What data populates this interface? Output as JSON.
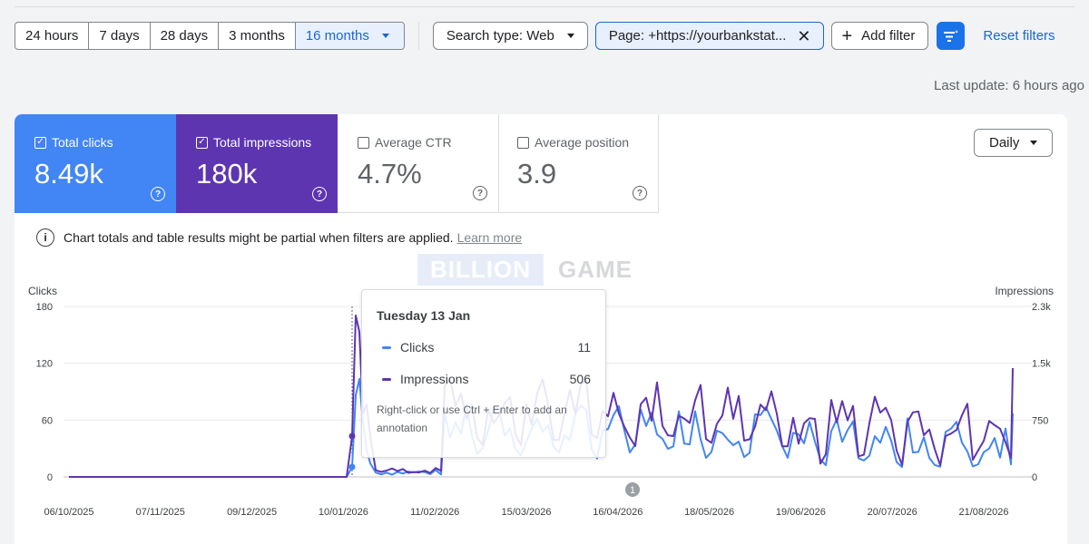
{
  "filters": {
    "date_ranges": [
      "24 hours",
      "7 days",
      "28 days",
      "3 months",
      "16 months"
    ],
    "active_range": "16 months",
    "search_type": "Search type: Web",
    "page_filter": "Page: +https://yourbankstat...",
    "add_filter": "Add filter",
    "reset": "Reset filters"
  },
  "last_update": "Last update: 6 hours ago",
  "metrics": {
    "clicks": {
      "label": "Total clicks",
      "value": "8.49k",
      "checked": true,
      "color": "#4285f4"
    },
    "impressions": {
      "label": "Total impressions",
      "value": "180k",
      "checked": true,
      "color": "#5e35b1"
    },
    "ctr": {
      "label": "Average CTR",
      "value": "4.7%",
      "checked": false
    },
    "position": {
      "label": "Average position",
      "value": "3.9",
      "checked": false
    }
  },
  "granularity": "Daily",
  "notice": {
    "text": "Chart totals and table results might be partial when filters are applied.",
    "link": "Learn more"
  },
  "watermark": {
    "a": "BILLION",
    "b": "GAME"
  },
  "tooltip": {
    "date": "Tuesday 13 Jan",
    "clicks_label": "Clicks",
    "clicks_value": "11",
    "impressions_label": "Impressions",
    "impressions_value": "506",
    "hint": "Right-click or use Ctrl + Enter to add an annotation"
  },
  "annotation_marker": "1",
  "chart_data": {
    "type": "line",
    "x": [
      "06/10/2025",
      "07/11/2025",
      "09/12/2025",
      "10/01/2026",
      "11/02/2026",
      "15/03/2026",
      "16/04/2026",
      "18/05/2026",
      "19/06/2026",
      "20/07/2026",
      "21/08/2026"
    ],
    "y_left_label": "Clicks",
    "y_left_ticks": [
      "0",
      "60",
      "120",
      "180"
    ],
    "y_left_range": [
      0,
      180
    ],
    "y_right_label": "Impressions",
    "y_right_ticks": [
      "0",
      "750",
      "1.5k",
      "2.3k"
    ],
    "y_right_range": [
      0,
      2250
    ],
    "grid": true,
    "series": [
      {
        "name": "Clicks",
        "color": "#4285f4",
        "axis": "left"
      },
      {
        "name": "Impressions",
        "color": "#5e35b1",
        "axis": "right"
      }
    ]
  }
}
